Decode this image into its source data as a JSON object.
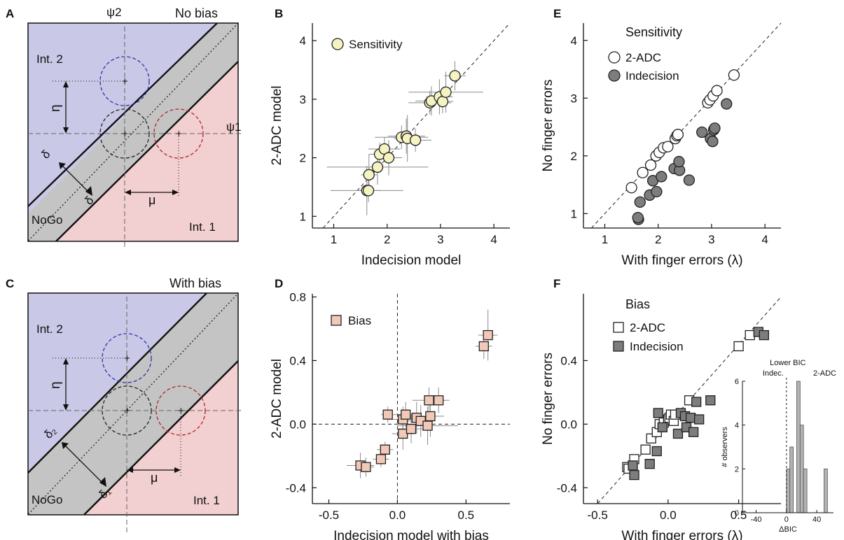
{
  "panel_labels": [
    "A",
    "B",
    "C",
    "D",
    "E",
    "F"
  ],
  "schematics": [
    {
      "title": "No bias",
      "region_top": "Int. 2",
      "region_bottom": "Int. 1",
      "region_middle": "NoGo",
      "axis_x": "ψ1",
      "axis_y": "ψ2",
      "sym_eta": "η",
      "sym_mu": "μ",
      "sym_delta_top": "δ",
      "sym_delta_bottom": "δ",
      "colors": {
        "top": "#c9c8e6",
        "bottom": "#f2cfd1",
        "middle": "#c4c4c4",
        "blue": "#2b36a8",
        "red": "#b0262a"
      }
    },
    {
      "title": "With bias",
      "region_top": "Int. 2",
      "region_bottom": "Int. 1",
      "region_middle": "NoGo",
      "sym_eta": "η",
      "sym_mu": "μ",
      "sym_delta_top": "δ₂",
      "sym_delta_bottom": "δ₁"
    }
  ],
  "chart_data": [
    {
      "panel": "B",
      "type": "scatter",
      "xlabel": "Indecision model",
      "ylabel": "2-ADC model",
      "xlim": [
        0.6,
        4.3
      ],
      "ylim": [
        0.8,
        4.3
      ],
      "xticks": [
        "1",
        "2",
        "3",
        "4"
      ],
      "yticks": [
        "1",
        "2",
        "3",
        "4"
      ],
      "legend": [
        "Sensitivity"
      ],
      "legend_position": "top-left",
      "identity_line": true,
      "marker_color": "#f6f3c2",
      "points": [
        {
          "x": 1.62,
          "y": 1.44,
          "xerr": 0.68,
          "yerr": 0.42
        },
        {
          "x": 1.65,
          "y": 1.44,
          "xerr": 0.25,
          "yerr": 0.2
        },
        {
          "x": 1.66,
          "y": 1.71,
          "xerr": 0.15,
          "yerr": 0.35
        },
        {
          "x": 1.82,
          "y": 1.84,
          "xerr": 0.95,
          "yerr": 0.3
        },
        {
          "x": 1.86,
          "y": 2.06,
          "xerr": 0.2,
          "yerr": 0.2
        },
        {
          "x": 1.95,
          "y": 2.15,
          "xerr": 0.3,
          "yerr": 0.2
        },
        {
          "x": 2.03,
          "y": 2.0,
          "xerr": 0.25,
          "yerr": 0.3
        },
        {
          "x": 2.27,
          "y": 2.35,
          "xerr": 0.5,
          "yerr": 0.2
        },
        {
          "x": 2.36,
          "y": 2.37,
          "xerr": 0.35,
          "yerr": 0.3
        },
        {
          "x": 2.38,
          "y": 2.33,
          "xerr": 0.25,
          "yerr": 0.4
        },
        {
          "x": 2.53,
          "y": 2.3,
          "xerr": 0.3,
          "yerr": 0.2
        },
        {
          "x": 2.8,
          "y": 2.94,
          "xerr": 0.4,
          "yerr": 0.2
        },
        {
          "x": 2.83,
          "y": 2.97,
          "xerr": 0.3,
          "yerr": 0.25
        },
        {
          "x": 2.98,
          "y": 3.04,
          "xerr": 0.25,
          "yerr": 0.3
        },
        {
          "x": 3.04,
          "y": 2.96,
          "xerr": 0.2,
          "yerr": 0.2
        },
        {
          "x": 3.1,
          "y": 3.12,
          "xerr": 0.7,
          "yerr": 0.35
        },
        {
          "x": 3.27,
          "y": 3.4,
          "xerr": 0.2,
          "yerr": 0.25
        }
      ]
    },
    {
      "panel": "D",
      "type": "scatter",
      "xlabel": "Indecision model with bias",
      "ylabel": "2-ADC model",
      "xlim": [
        -0.62,
        0.82
      ],
      "ylim": [
        -0.5,
        0.82
      ],
      "xticks": [
        "-0.5",
        "0.0",
        "0.5"
      ],
      "yticks": [
        "-0.4",
        "0.0",
        "0.4",
        "0.8"
      ],
      "legend": [
        "Bias"
      ],
      "legend_position": "top-left",
      "zero_lines": true,
      "marker_color": "#f2c9b8",
      "points": [
        {
          "x": -0.27,
          "y": -0.26,
          "xerr": 0.1,
          "yerr": 0.08
        },
        {
          "x": -0.23,
          "y": -0.27,
          "xerr": 0.06,
          "yerr": 0.06
        },
        {
          "x": -0.12,
          "y": -0.22,
          "xerr": 0.06,
          "yerr": 0.05
        },
        {
          "x": -0.09,
          "y": -0.16,
          "xerr": 0.06,
          "yerr": 0.05
        },
        {
          "x": -0.07,
          "y": 0.06,
          "xerr": 0.05,
          "yerr": 0.05
        },
        {
          "x": 0.04,
          "y": -0.06,
          "xerr": 0.08,
          "yerr": 0.1
        },
        {
          "x": 0.04,
          "y": 0.03,
          "xerr": 0.1,
          "yerr": 0.08
        },
        {
          "x": 0.06,
          "y": 0.06,
          "xerr": 0.08,
          "yerr": 0.08
        },
        {
          "x": 0.1,
          "y": -0.03,
          "xerr": 0.1,
          "yerr": 0.09
        },
        {
          "x": 0.14,
          "y": 0.04,
          "xerr": 0.08,
          "yerr": 0.1
        },
        {
          "x": 0.17,
          "y": 0.02,
          "xerr": 0.1,
          "yerr": 0.1
        },
        {
          "x": 0.22,
          "y": -0.01,
          "xerr": 0.22,
          "yerr": 0.12
        },
        {
          "x": 0.23,
          "y": 0.15,
          "xerr": 0.12,
          "yerr": 0.08
        },
        {
          "x": 0.24,
          "y": 0.05,
          "xerr": 0.1,
          "yerr": 0.13
        },
        {
          "x": 0.3,
          "y": 0.15,
          "xerr": 0.08,
          "yerr": 0.08
        },
        {
          "x": 0.63,
          "y": 0.49,
          "xerr": 0.06,
          "yerr": 0.08
        },
        {
          "x": 0.66,
          "y": 0.56,
          "xerr": 0.07,
          "yerr": 0.16
        }
      ]
    },
    {
      "panel": "E",
      "type": "scatter",
      "title": "Sensitivity",
      "xlabel": "With finger errors (λ)",
      "ylabel": "No finger errors",
      "xlim": [
        0.6,
        4.3
      ],
      "ylim": [
        0.75,
        4.3
      ],
      "xticks": [
        "1",
        "2",
        "3",
        "4"
      ],
      "yticks": [
        "1",
        "2",
        "3",
        "4"
      ],
      "legend_position": "top-left",
      "identity_line": true,
      "series": [
        {
          "name": "2-ADC",
          "color": "#ffffff",
          "x": [
            1.5,
            1.71,
            1.86,
            1.96,
            2.02,
            2.1,
            2.18,
            2.32,
            2.35,
            2.37,
            2.93,
            2.97,
            3.03,
            3.1,
            3.42
          ],
          "y": [
            1.45,
            1.71,
            1.84,
            2.0,
            2.06,
            2.14,
            2.16,
            2.3,
            2.35,
            2.37,
            2.92,
            2.97,
            3.04,
            3.13,
            3.4
          ]
        },
        {
          "name": "Indecision",
          "color": "#7d7d7d",
          "x": [
            1.63,
            1.62,
            1.66,
            1.84,
            1.97,
            1.9,
            2.06,
            2.3,
            2.4,
            2.39,
            2.58,
            2.82,
            2.98,
            3.04,
            3.06,
            3.02,
            3.28
          ],
          "y": [
            0.9,
            0.93,
            1.2,
            1.32,
            1.38,
            1.57,
            1.64,
            1.78,
            1.75,
            1.9,
            1.58,
            2.41,
            2.3,
            2.45,
            2.48,
            2.25,
            2.9
          ]
        }
      ]
    },
    {
      "panel": "F",
      "type": "scatter",
      "title": "Bias",
      "xlabel": "With finger errors (λ)",
      "ylabel": "No finger errors",
      "xlim": [
        -0.6,
        0.8
      ],
      "ylim": [
        -0.5,
        0.82
      ],
      "xticks": [
        "-0.5",
        "0.0",
        "0.5"
      ],
      "yticks": [
        "-0.4",
        "0.0",
        "0.4"
      ],
      "legend_position": "top-left",
      "identity_line": true,
      "series": [
        {
          "name": "2-ADC",
          "color": "#ffffff",
          "x": [
            -0.29,
            -0.28,
            -0.24,
            -0.16,
            -0.12,
            -0.08,
            -0.06,
            -0.03,
            0.0,
            0.01,
            0.02,
            0.04,
            0.05,
            0.15,
            0.5,
            0.58
          ],
          "y": [
            -0.27,
            -0.28,
            -0.22,
            -0.16,
            -0.09,
            -0.05,
            0.0,
            0.01,
            0.03,
            0.04,
            0.06,
            0.02,
            0.06,
            0.15,
            0.49,
            0.56
          ]
        },
        {
          "name": "Indecision",
          "color": "#7d7d7d",
          "x": [
            -0.25,
            -0.24,
            -0.13,
            -0.08,
            -0.07,
            -0.04,
            0.07,
            0.09,
            0.12,
            0.13,
            0.16,
            0.18,
            0.2,
            0.22,
            0.3,
            0.64,
            0.68
          ],
          "y": [
            -0.26,
            -0.32,
            -0.25,
            -0.17,
            0.07,
            -0.02,
            -0.06,
            0.07,
            0.05,
            -0.02,
            0.04,
            -0.05,
            0.14,
            0.03,
            0.15,
            0.58,
            0.56
          ]
        }
      ],
      "inset": {
        "type": "histogram",
        "xlabel": "ΔBIC",
        "ylabel": "# observers",
        "xticks": [
          "-40",
          "0",
          "40"
        ],
        "yticks": [
          "0",
          "2",
          "4",
          "6"
        ],
        "xlim": [
          -58,
          62
        ],
        "ylim": [
          0,
          6
        ],
        "annotations": [
          "Lower BIC",
          "Indec.",
          "2-ADC"
        ],
        "bar_color": "#b3b3b3",
        "bins": [
          {
            "x0": 0,
            "x1": 4.5,
            "count": 2
          },
          {
            "x0": 4.5,
            "x1": 9,
            "count": 3
          },
          {
            "x0": 13.5,
            "x1": 18,
            "count": 6
          },
          {
            "x0": 18,
            "x1": 22.5,
            "count": 4
          },
          {
            "x0": 22.5,
            "x1": 27,
            "count": 2
          },
          {
            "x0": 49.5,
            "x1": 54,
            "count": 2
          }
        ]
      }
    }
  ]
}
